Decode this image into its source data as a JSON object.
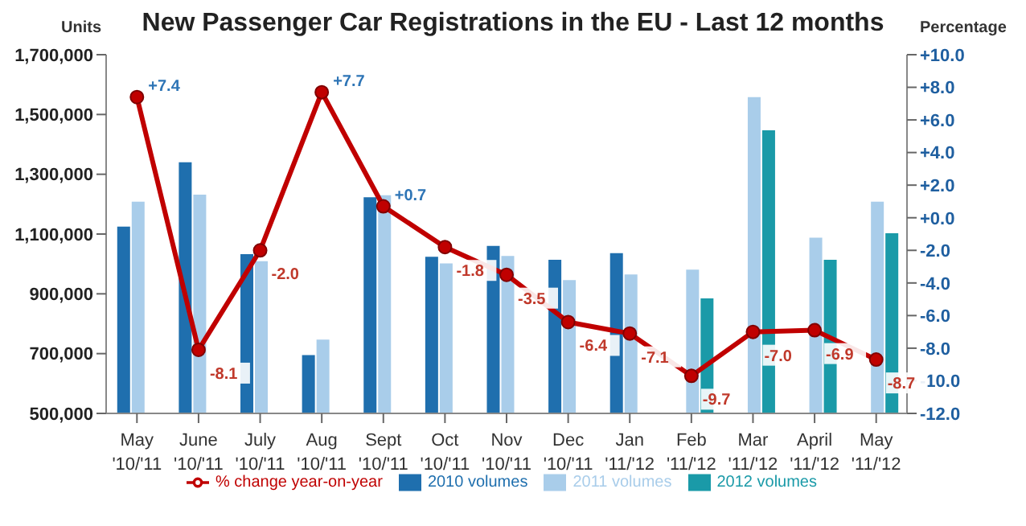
{
  "chart_data": {
    "type": "bar",
    "title": "New Passenger Car Registrations in the EU - Last 12 months",
    "ylabel": "Units",
    "y2label": "Percentage",
    "categories": [
      "May '10/'11",
      "June '10/'11",
      "July '10/'11",
      "Aug '10/'11",
      "Sept '10/'11",
      "Oct '10/'11",
      "Nov '10/'11",
      "Dec '10/'11",
      "Jan '11/'12",
      "Feb '11/'12",
      "Mar '11/'12",
      "April '11/'12",
      "May '11/'12"
    ],
    "series": [
      {
        "name": "2010 volumes",
        "color": "#1f6fae",
        "values": [
          1125000,
          1340000,
          1033000,
          695000,
          1223000,
          1024000,
          1060000,
          1014000,
          1036000,
          null,
          null,
          null,
          null
        ]
      },
      {
        "name": "2011 volumes",
        "color": "#a9cdea",
        "values": [
          1208000,
          1232000,
          1009000,
          747000,
          1230000,
          1002000,
          1027000,
          946000,
          965000,
          981000,
          1558000,
          1088000,
          1208000
        ]
      },
      {
        "name": "2012 volumes",
        "color": "#1a9aa8",
        "values": [
          null,
          null,
          null,
          null,
          null,
          null,
          null,
          null,
          null,
          885000,
          1447000,
          1014000,
          1103000
        ]
      },
      {
        "name": "% change year-on-year",
        "type": "line",
        "axis": "y2",
        "color": "#c00000",
        "values": [
          7.4,
          -8.1,
          -2.0,
          7.7,
          0.7,
          -1.8,
          -3.5,
          -6.4,
          -7.1,
          -9.7,
          -7.0,
          -6.9,
          -8.7
        ],
        "value_labels": [
          "+7.4",
          "-8.1",
          "-2.0",
          "+7.7",
          "+0.7",
          "-1.8",
          "-3.5",
          "-6.4",
          "-7.1",
          "-9.7",
          "-7.0",
          "-6.9",
          "-8.7"
        ]
      }
    ],
    "ylim": [
      500000,
      1700000
    ],
    "yticks": [
      {
        "value": 500000,
        "label": "500,000"
      },
      {
        "value": 700000,
        "label": "700,000"
      },
      {
        "value": 900000,
        "label": "900,000"
      },
      {
        "value": 1100000,
        "label": "1,100,000"
      },
      {
        "value": 1300000,
        "label": "1,300,000"
      },
      {
        "value": 1500000,
        "label": "1,500,000"
      },
      {
        "value": 1700000,
        "label": "1,700,000"
      }
    ],
    "y2lim": [
      -12,
      10
    ],
    "y2ticks": [
      {
        "value": -12,
        "label": "-12.0"
      },
      {
        "value": -10,
        "label": "-10.0"
      },
      {
        "value": -8,
        "label": "-8.0"
      },
      {
        "value": -6,
        "label": "-6.0"
      },
      {
        "value": -4,
        "label": "-4.0"
      },
      {
        "value": -2,
        "label": "-2.0"
      },
      {
        "value": 0,
        "label": "+0.0"
      },
      {
        "value": 2,
        "label": "+2.0"
      },
      {
        "value": 4,
        "label": "+4.0"
      },
      {
        "value": 6,
        "label": "+6.0"
      },
      {
        "value": 8,
        "label": "+8.0"
      },
      {
        "value": 10,
        "label": "+10.0"
      }
    ],
    "grid": false,
    "legend": "bottom",
    "marker": "circle",
    "line_style": "solid"
  }
}
